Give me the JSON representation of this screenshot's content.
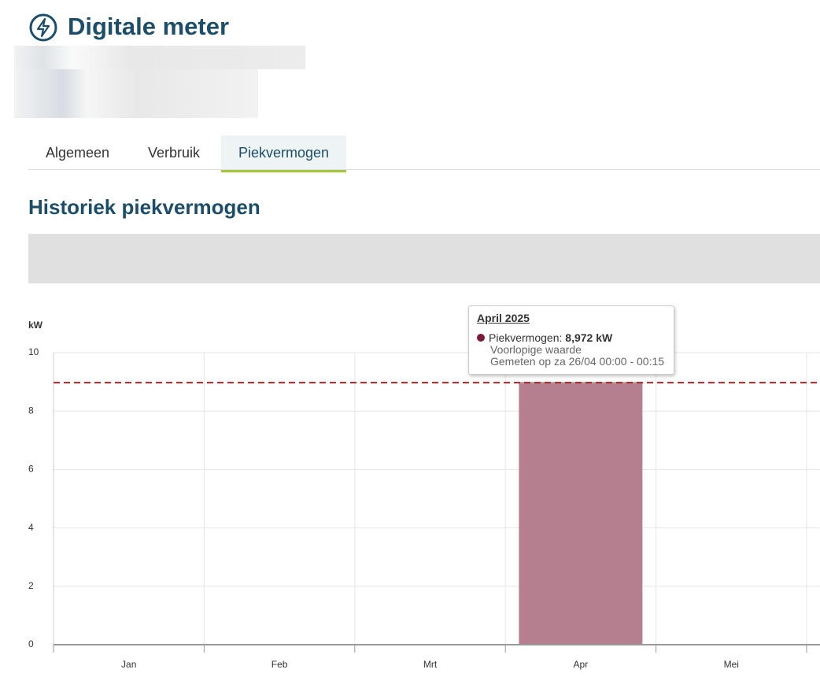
{
  "header": {
    "title": "Digitale meter"
  },
  "tabs": [
    "Algemeen",
    "Verbruik",
    "Piekvermogen"
  ],
  "active_tab": 2,
  "section_title": "Historiek piekvermogen",
  "chart_data": {
    "type": "bar",
    "y_label": "kW",
    "categories": [
      "Jan",
      "Feb",
      "Mrt",
      "Apr",
      "Mei"
    ],
    "series": [
      {
        "name": "Piekvermogen",
        "color": "#b57f8f",
        "values": [
          0,
          0,
          0,
          8.972,
          0
        ]
      }
    ],
    "ylim": [
      0,
      10
    ],
    "yticks": [
      0,
      2,
      4,
      6,
      8,
      10
    ],
    "grid": true,
    "reference_line": 8.972,
    "reference_color": "#b22222",
    "tooltip": {
      "title": "April 2025",
      "label": "Piekvermogen:",
      "value_label": "8,972 kW",
      "dot_color": "#7a1a35",
      "notes": [
        "Voorlopige waarde",
        "Gemeten op za 26/04 00:00 - 00:15"
      ]
    }
  }
}
